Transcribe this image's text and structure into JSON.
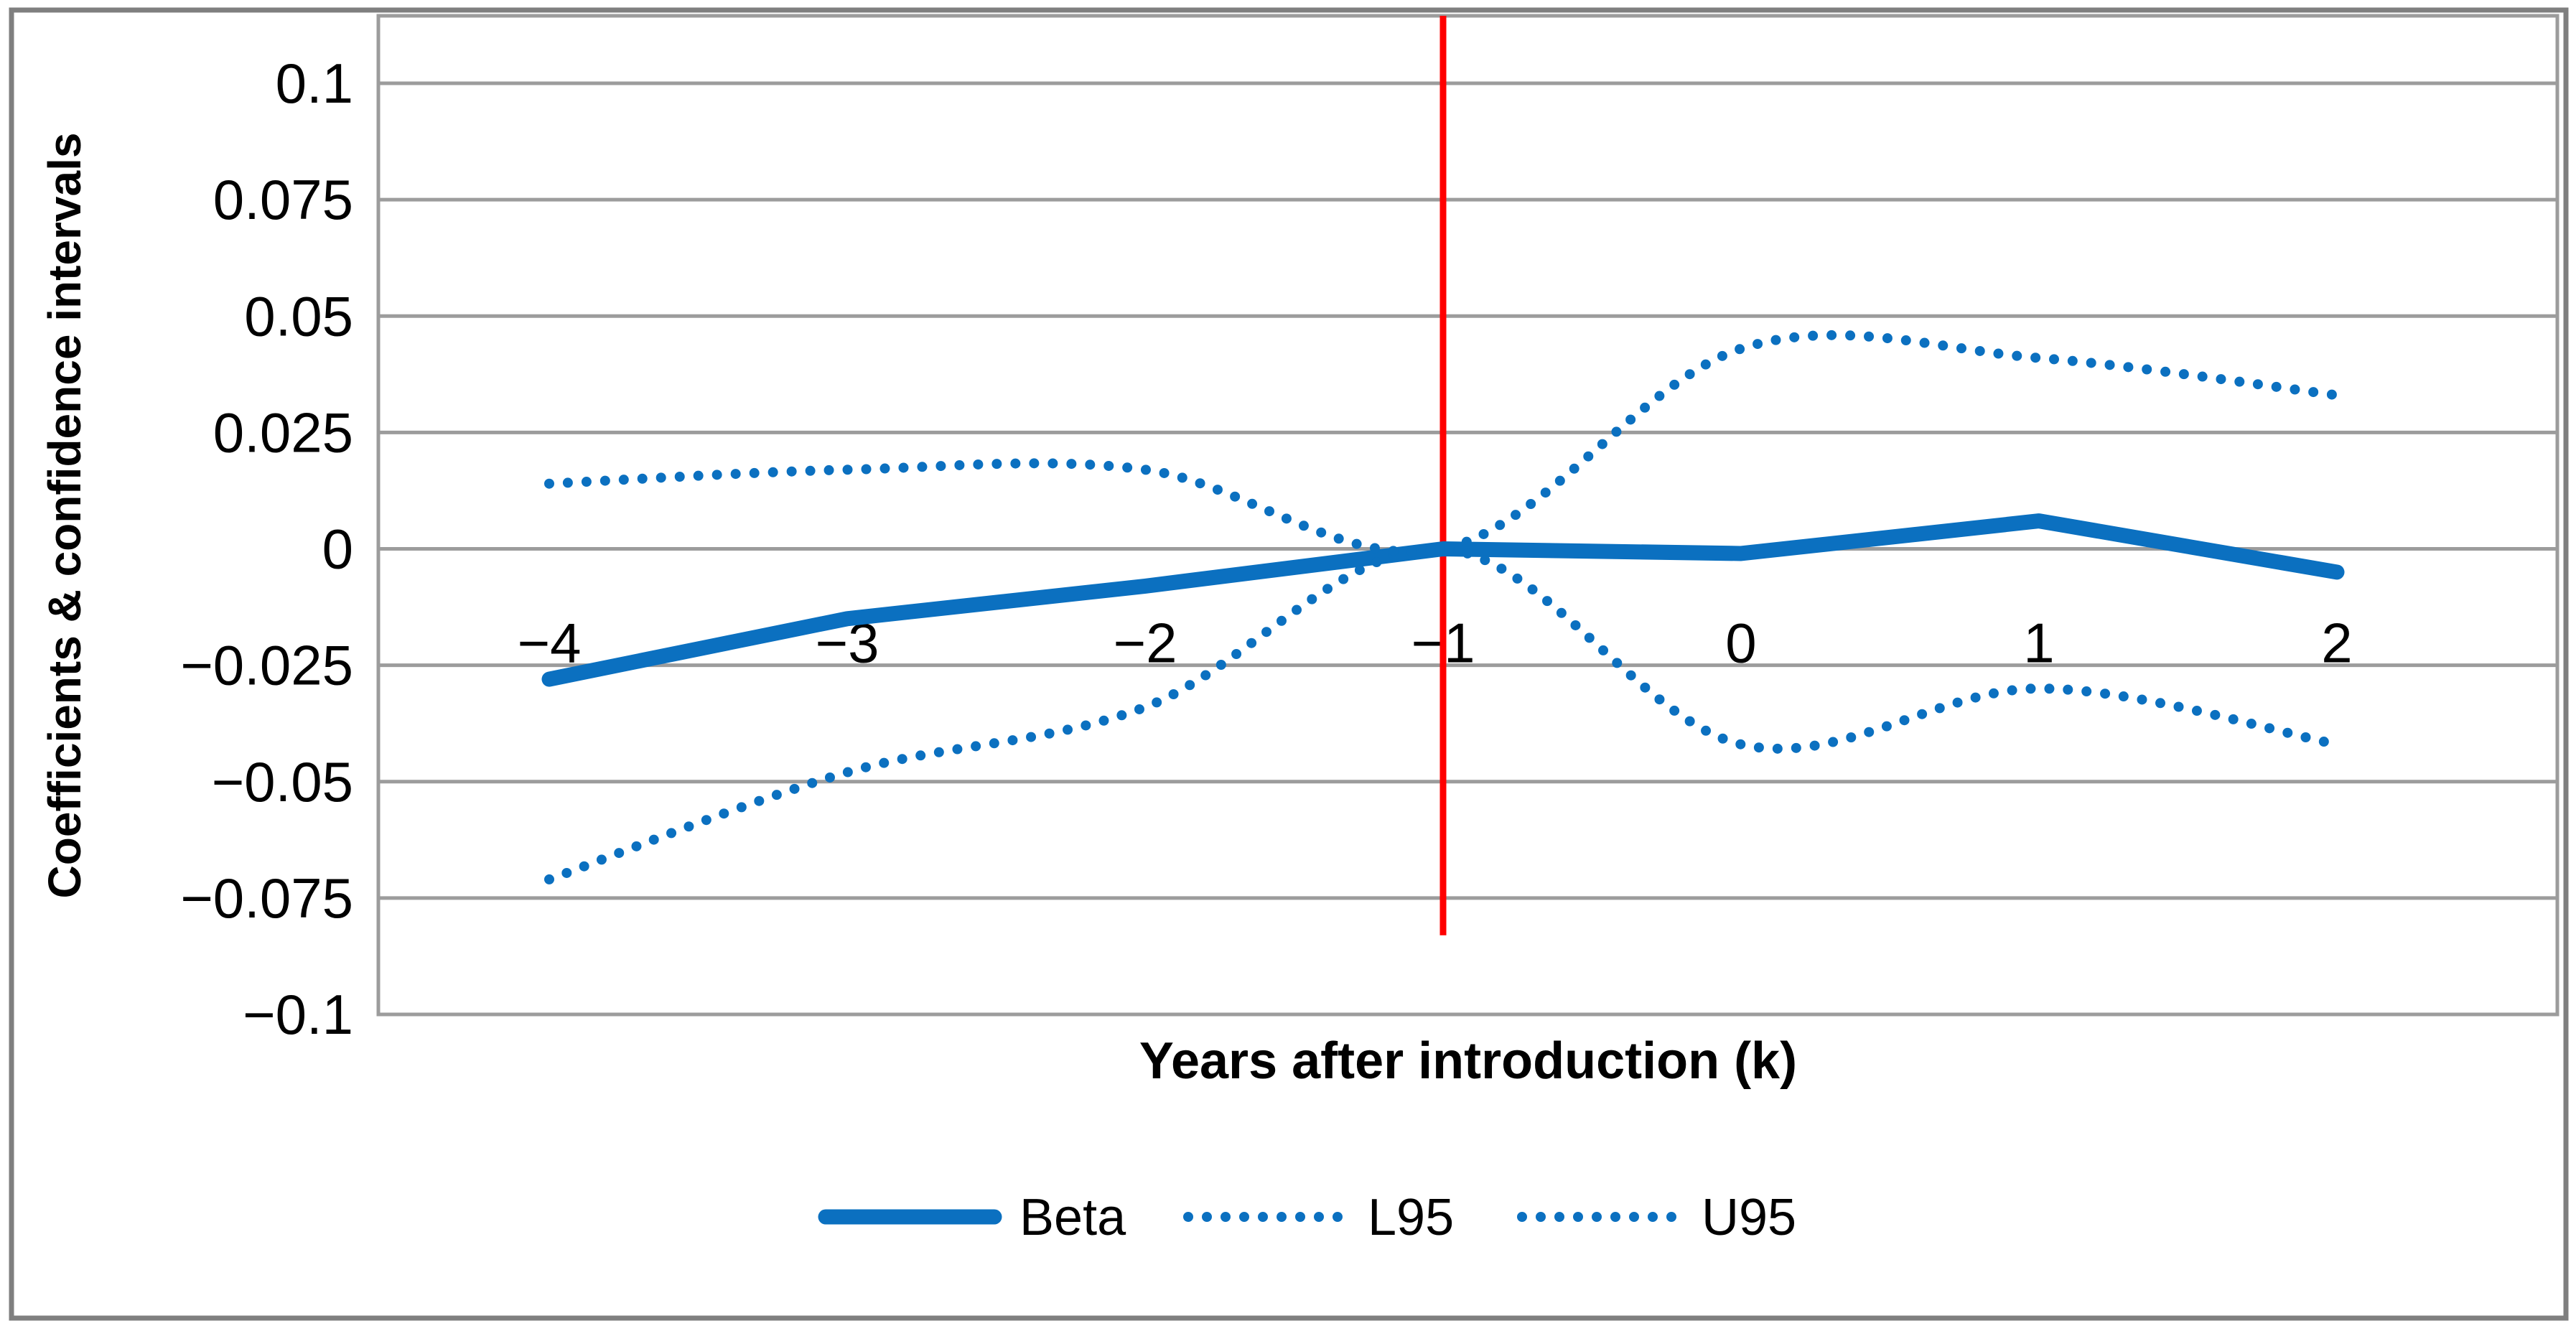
{
  "chart_data": {
    "type": "line",
    "title": "",
    "xlabel": "Years after introduction (k)",
    "ylabel": "Coefficients & confidence intervals",
    "categories": [
      -4,
      -3,
      -2,
      -1,
      0,
      1,
      2
    ],
    "x_tick_labels": [
      "−4",
      "−3",
      "−2",
      "−1",
      "0",
      "1",
      "2"
    ],
    "y_ticks": [
      0.1,
      0.075,
      0.05,
      0.025,
      0,
      -0.025,
      -0.05,
      -0.075,
      -0.1
    ],
    "y_tick_labels": [
      "0.1",
      "0.075",
      "0.05",
      "0.025",
      "0",
      "−0.025",
      "−0.05",
      "−0.075",
      "−0.1"
    ],
    "ylim": [
      -0.1,
      0.115
    ],
    "grid": true,
    "legend_position": "bottom-center",
    "series": [
      {
        "name": "Beta",
        "line_style": "solid",
        "smooth": false,
        "values": [
          -0.028,
          -0.015,
          -0.008,
          0,
          -0.001,
          0.006,
          -0.005
        ]
      },
      {
        "name": "L95",
        "line_style": "dotted",
        "smooth": true,
        "values": [
          -0.071,
          -0.048,
          -0.034,
          0,
          -0.042,
          -0.03,
          -0.042
        ]
      },
      {
        "name": "U95",
        "line_style": "dotted",
        "smooth": true,
        "values": [
          0.014,
          0.017,
          0.017,
          0,
          0.043,
          0.041,
          0.033
        ]
      }
    ],
    "reference_line": {
      "axis": "x",
      "value": -1,
      "color": "#FF0000",
      "y_extent": [
        -0.083,
        0.115
      ]
    },
    "colors": {
      "series": "#0B70C0",
      "gridline": "#9C9C9C",
      "plot_border": "#9C9C9C",
      "figure_border": "#7F7F7F",
      "text": "#000000",
      "background": "#FFFFFF"
    }
  }
}
